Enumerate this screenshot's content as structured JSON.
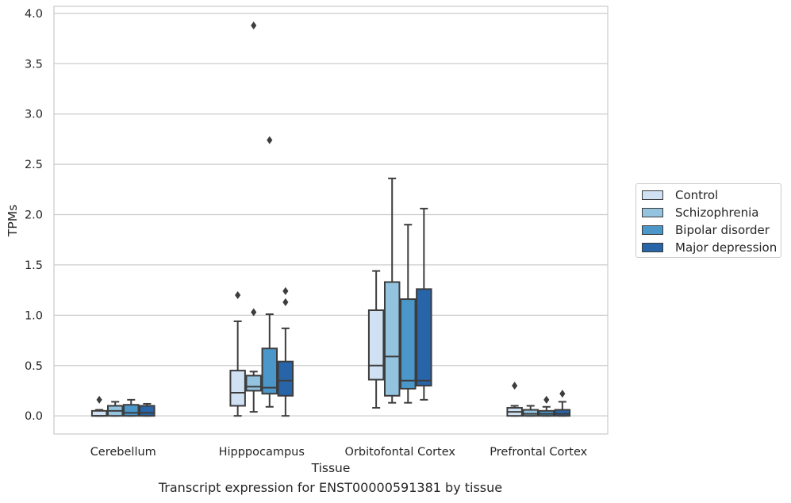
{
  "caption": "Transcript expression for ENST00000591381 by tissue",
  "colors": {
    "Control": "#cfe1f2",
    "Schizophrenia": "#93c3df",
    "Bipolar disorder": "#4b97c9",
    "Major depression": "#2864a8"
  },
  "chart_data": {
    "type": "box",
    "title": "",
    "xlabel": "Tissue",
    "ylabel": "TPMs",
    "ylim": [
      -0.18,
      4.07
    ],
    "yticks": [
      0.0,
      0.5,
      1.0,
      1.5,
      2.0,
      2.5,
      3.0,
      3.5,
      4.0
    ],
    "ytick_labels": [
      "0.0",
      "0.5",
      "1.0",
      "1.5",
      "2.0",
      "2.5",
      "3.0",
      "3.5",
      "4.0"
    ],
    "grid": true,
    "legend_position": "right",
    "categories": [
      "Cerebellum",
      "Hipppocampus",
      "Orbitofontal Cortex",
      "Prefrontal Cortex"
    ],
    "series": [
      {
        "name": "Control",
        "boxes": [
          {
            "whislo": 0.0,
            "q1": 0.0,
            "med": 0.0,
            "q3": 0.05,
            "whishi": 0.06,
            "fliers": [
              0.16
            ]
          },
          {
            "whislo": 0.0,
            "q1": 0.1,
            "med": 0.23,
            "q3": 0.45,
            "whishi": 0.94,
            "fliers": [
              1.2
            ]
          },
          {
            "whislo": 0.08,
            "q1": 0.36,
            "med": 0.5,
            "q3": 1.05,
            "whishi": 1.44,
            "fliers": []
          },
          {
            "whislo": 0.0,
            "q1": 0.0,
            "med": 0.04,
            "q3": 0.08,
            "whishi": 0.1,
            "fliers": [
              0.3
            ]
          }
        ]
      },
      {
        "name": "Schizophrenia",
        "boxes": [
          {
            "whislo": 0.0,
            "q1": 0.0,
            "med": 0.05,
            "q3": 0.1,
            "whishi": 0.14,
            "fliers": []
          },
          {
            "whislo": 0.04,
            "q1": 0.25,
            "med": 0.29,
            "q3": 0.4,
            "whishi": 0.44,
            "fliers": [
              1.03,
              3.88
            ]
          },
          {
            "whislo": 0.13,
            "q1": 0.2,
            "med": 0.59,
            "q3": 1.33,
            "whishi": 2.36,
            "fliers": []
          },
          {
            "whislo": 0.0,
            "q1": 0.0,
            "med": 0.02,
            "q3": 0.06,
            "whishi": 0.1,
            "fliers": []
          }
        ]
      },
      {
        "name": "Bipolar disorder",
        "boxes": [
          {
            "whislo": 0.0,
            "q1": 0.0,
            "med": 0.03,
            "q3": 0.11,
            "whishi": 0.16,
            "fliers": []
          },
          {
            "whislo": 0.09,
            "q1": 0.22,
            "med": 0.28,
            "q3": 0.67,
            "whishi": 1.01,
            "fliers": [
              2.74
            ]
          },
          {
            "whislo": 0.13,
            "q1": 0.27,
            "med": 0.35,
            "q3": 1.16,
            "whishi": 1.9,
            "fliers": []
          },
          {
            "whislo": 0.0,
            "q1": 0.0,
            "med": 0.02,
            "q3": 0.05,
            "whishi": 0.09,
            "fliers": [
              0.16
            ]
          }
        ]
      },
      {
        "name": "Major depression",
        "boxes": [
          {
            "whislo": 0.0,
            "q1": 0.0,
            "med": 0.03,
            "q3": 0.1,
            "whishi": 0.12,
            "fliers": []
          },
          {
            "whislo": 0.0,
            "q1": 0.2,
            "med": 0.35,
            "q3": 0.54,
            "whishi": 0.87,
            "fliers": [
              1.13,
              1.24
            ]
          },
          {
            "whislo": 0.16,
            "q1": 0.3,
            "med": 0.35,
            "q3": 1.26,
            "whishi": 2.06,
            "fliers": []
          },
          {
            "whislo": 0.0,
            "q1": 0.0,
            "med": 0.02,
            "q3": 0.06,
            "whishi": 0.14,
            "fliers": [
              0.22
            ]
          }
        ]
      }
    ]
  }
}
